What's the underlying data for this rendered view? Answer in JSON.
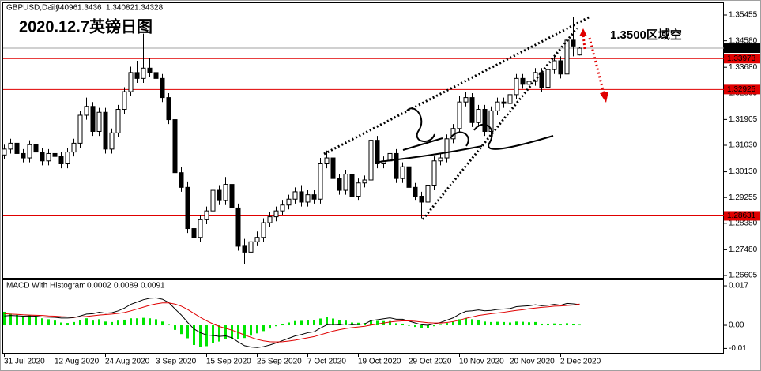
{
  "chart_data": [
    {
      "type": "candlestick",
      "symbol": "GBPUSD,Daily",
      "title": "2020.12.7英镑日图",
      "annotation": "1.3500区域空",
      "categories": [
        "31 Jul 2020",
        null,
        null,
        null,
        null,
        null,
        null,
        null,
        "12 Aug 2020",
        null,
        null,
        null,
        null,
        null,
        null,
        null,
        "24 Aug 2020",
        null,
        null,
        null,
        null,
        null,
        null,
        null,
        "3 Sep 2020",
        null,
        null,
        null,
        null,
        null,
        null,
        null,
        "15 Sep 2020",
        null,
        null,
        null,
        null,
        null,
        null,
        null,
        "25 Sep 2020",
        null,
        null,
        null,
        null,
        null,
        null,
        null,
        "7 Oct 2020",
        null,
        null,
        null,
        null,
        null,
        null,
        null,
        "19 Oct 2020",
        null,
        null,
        null,
        null,
        null,
        null,
        null,
        "29 Oct 2020",
        null,
        null,
        null,
        null,
        null,
        null,
        null,
        "10 Nov 2020",
        null,
        null,
        null,
        null,
        null,
        null,
        null,
        "20 Nov 2020",
        null,
        null,
        null,
        null,
        null,
        null,
        null,
        "2 Dec 2020",
        null,
        null,
        null
      ],
      "open": [
        1.307,
        1.309,
        1.311,
        1.3075,
        1.306,
        1.3105,
        1.308,
        1.305,
        1.3075,
        1.3065,
        1.304,
        1.308,
        1.311,
        1.3205,
        1.3235,
        1.315,
        1.3215,
        1.309,
        1.3145,
        1.3225,
        1.3285,
        1.335,
        1.333,
        1.3365,
        1.335,
        1.333,
        1.3265,
        1.319,
        1.301,
        1.296,
        1.282,
        1.279,
        1.285,
        1.288,
        1.295,
        1.2915,
        1.297,
        1.289,
        1.276,
        1.274,
        1.2775,
        1.279,
        1.284,
        1.286,
        1.288,
        1.29,
        1.292,
        1.2945,
        1.291,
        1.2935,
        1.292,
        1.304,
        1.306,
        1.299,
        1.295,
        1.3005,
        1.293,
        1.2975,
        1.2985,
        1.312,
        1.304,
        1.305,
        1.3075,
        1.299,
        1.303,
        1.296,
        1.293,
        1.291,
        1.2965,
        1.305,
        1.306,
        1.3125,
        1.316,
        1.325,
        1.3265,
        1.318,
        1.3225,
        1.315,
        1.322,
        1.325,
        1.3245,
        1.3275,
        1.333,
        1.331,
        1.332,
        1.335,
        1.33,
        1.336,
        1.339,
        1.3345,
        1.346,
        1.34096
      ],
      "high": [
        1.3105,
        1.3125,
        1.3125,
        1.309,
        1.312,
        1.312,
        1.3095,
        1.309,
        1.309,
        1.308,
        1.3095,
        1.3125,
        1.322,
        1.3265,
        1.325,
        1.323,
        1.323,
        1.316,
        1.324,
        1.33,
        1.337,
        1.339,
        1.3482,
        1.34,
        1.337,
        1.3345,
        1.328,
        1.3205,
        1.303,
        1.298,
        1.284,
        1.2865,
        1.2895,
        1.2985,
        1.2965,
        1.2995,
        1.2985,
        1.2905,
        1.2785,
        1.2795,
        1.281,
        1.2855,
        1.2875,
        1.2895,
        1.2915,
        1.2935,
        1.296,
        1.2965,
        1.295,
        1.295,
        1.306,
        1.3085,
        1.3075,
        1.3005,
        1.302,
        1.302,
        1.299,
        1.3,
        1.314,
        1.3135,
        1.3065,
        1.309,
        1.309,
        1.3045,
        1.3045,
        1.2975,
        1.2945,
        1.298,
        1.3065,
        1.3075,
        1.314,
        1.3175,
        1.327,
        1.3285,
        1.328,
        1.324,
        1.324,
        1.3235,
        1.3265,
        1.3265,
        1.329,
        1.3345,
        1.3345,
        1.3335,
        1.3365,
        1.3365,
        1.3375,
        1.341,
        1.3405,
        1.348,
        1.354,
        1.3436
      ],
      "low": [
        1.3055,
        1.3075,
        1.306,
        1.3045,
        1.3045,
        1.3065,
        1.3035,
        1.3035,
        1.305,
        1.3025,
        1.3025,
        1.3065,
        1.3095,
        1.319,
        1.3135,
        1.3135,
        1.3075,
        1.3075,
        1.313,
        1.321,
        1.327,
        1.3315,
        1.3315,
        1.3335,
        1.3315,
        1.325,
        1.3175,
        1.2995,
        1.2945,
        1.2805,
        1.2775,
        1.2775,
        1.2835,
        1.2865,
        1.29,
        1.29,
        1.2875,
        1.2745,
        1.27,
        1.268,
        1.276,
        1.2775,
        1.2825,
        1.2845,
        1.2865,
        1.2885,
        1.2905,
        1.2895,
        1.2895,
        1.2905,
        1.2905,
        1.3025,
        1.2975,
        1.2935,
        1.2935,
        1.287,
        1.2915,
        1.296,
        1.297,
        1.3025,
        1.3025,
        1.3035,
        1.2975,
        1.2975,
        1.2945,
        1.2915,
        1.2855,
        1.2895,
        1.295,
        1.3035,
        1.3045,
        1.311,
        1.3145,
        1.3235,
        1.3165,
        1.3165,
        1.3135,
        1.3135,
        1.3205,
        1.323,
        1.323,
        1.326,
        1.3295,
        1.3295,
        1.3305,
        1.3285,
        1.3285,
        1.3345,
        1.333,
        1.333,
        1.3405,
        1.34082
      ],
      "close": [
        1.309,
        1.311,
        1.3075,
        1.306,
        1.3105,
        1.308,
        1.305,
        1.3075,
        1.3065,
        1.304,
        1.308,
        1.311,
        1.3205,
        1.3235,
        1.315,
        1.3215,
        1.309,
        1.3145,
        1.3225,
        1.3285,
        1.335,
        1.333,
        1.3365,
        1.335,
        1.333,
        1.3265,
        1.319,
        1.301,
        1.296,
        1.282,
        1.279,
        1.285,
        1.288,
        1.295,
        1.2915,
        1.297,
        1.289,
        1.276,
        1.274,
        1.2775,
        1.279,
        1.284,
        1.286,
        1.288,
        1.29,
        1.292,
        1.2945,
        1.291,
        1.2935,
        1.292,
        1.304,
        1.306,
        1.299,
        1.295,
        1.3005,
        1.293,
        1.2975,
        1.2985,
        1.312,
        1.304,
        1.305,
        1.3075,
        1.299,
        1.303,
        1.296,
        1.293,
        1.291,
        1.2965,
        1.305,
        1.306,
        1.3125,
        1.316,
        1.325,
        1.3265,
        1.318,
        1.3225,
        1.315,
        1.322,
        1.325,
        1.3245,
        1.3275,
        1.333,
        1.331,
        1.332,
        1.335,
        1.33,
        1.336,
        1.339,
        1.3345,
        1.346,
        1.344,
        1.34328
      ],
      "up_color": "#ffffff",
      "down_color": "#000000",
      "outline_color": "#000000",
      "ylim": [
        1.26525,
        1.35884
      ],
      "yticks": [
        1.35455,
        {
          "value": 1.3458,
          "label": "1.34580"
        },
        {
          "value": 1.3368,
          "label": "1.33680"
        },
        1.32805,
        1.31905,
        {
          "value": 1.3103,
          "label": "1.31030"
        },
        {
          "value": 1.3013,
          "label": "1.30130"
        },
        1.29255,
        {
          "value": 1.2838,
          "label": "1.28380"
        },
        {
          "value": 1.2748,
          "label": "1.27480"
        },
        1.26605
      ],
      "levels": [
        1.33973,
        1.32925,
        1.28631
      ],
      "level_color": "#e00000",
      "price_line_color": "#a0a0a0"
    },
    {
      "type": "macd",
      "indicator": "MACD With Histogram",
      "series": [
        {
          "type": "histogram",
          "color": "#00e600",
          "values": [
            0.0058,
            0.005,
            0.0045,
            0.004,
            0.0042,
            0.0038,
            0.003,
            0.0026,
            0.002,
            0.0012,
            0.001,
            0.0014,
            0.0022,
            0.003,
            0.002,
            0.0026,
            0.0016,
            0.0014,
            0.002,
            0.0024,
            0.003,
            0.003,
            0.0032,
            0.003,
            0.0026,
            0.0016,
            0.0002,
            -0.002,
            -0.0038,
            -0.0056,
            -0.0085,
            -0.0095,
            -0.009,
            -0.0078,
            -0.007,
            -0.006,
            -0.0058,
            -0.006,
            -0.0055,
            -0.0045,
            -0.0035,
            -0.0025,
            -0.0014,
            -0.0004,
            0.0005,
            0.0012,
            0.0018,
            0.0019,
            0.0022,
            0.0021,
            0.0029,
            0.0035,
            0.0029,
            0.0021,
            0.002,
            0.0012,
            0.0011,
            0.001,
            0.0019,
            0.0019,
            0.0018,
            0.0018,
            0.0009,
            0.0007,
            -0.0001,
            -0.0007,
            -0.0012,
            -0.0011,
            -0.0004,
            0.0002,
            0.001,
            0.0016,
            0.0026,
            0.003,
            0.0026,
            0.0024,
            0.0016,
            0.0014,
            0.0015,
            0.0014,
            0.0012,
            0.0016,
            0.0015,
            0.0013,
            0.0014,
            0.0007,
            0.0007,
            0.0008,
            0.0003,
            0.0009,
            0.0005,
            0.0002
          ]
        },
        {
          "type": "line",
          "color": "#000000",
          "values": [
            0.004,
            0.0042,
            0.0041,
            0.0039,
            0.004,
            0.0039,
            0.0036,
            0.0035,
            0.0034,
            0.0031,
            0.0031,
            0.0033,
            0.004,
            0.0048,
            0.005,
            0.0056,
            0.0052,
            0.0054,
            0.0062,
            0.0074,
            0.009,
            0.01,
            0.011,
            0.0116,
            0.0118,
            0.0112,
            0.0098,
            0.007,
            0.0044,
            0.0012,
            -0.0016,
            -0.0032,
            -0.0042,
            -0.0044,
            -0.0048,
            -0.0046,
            -0.0054,
            -0.0072,
            -0.0088,
            -0.0094,
            -0.0096,
            -0.0092,
            -0.0085,
            -0.0076,
            -0.0066,
            -0.0056,
            -0.0046,
            -0.004,
            -0.0032,
            -0.0028,
            -0.0012,
            0.0002,
            0.0004,
            0.0002,
            0.0006,
            0.0002,
            0.0004,
            0.0006,
            0.002,
            0.0024,
            0.0028,
            0.0032,
            0.0026,
            0.0026,
            0.0018,
            0.001,
            0.0002,
            0.0,
            0.0006,
            0.0012,
            0.0022,
            0.0032,
            0.0048,
            0.006,
            0.0062,
            0.0066,
            0.0062,
            0.0064,
            0.0068,
            0.007,
            0.0072,
            0.008,
            0.0082,
            0.0084,
            0.0088,
            0.0084,
            0.0086,
            0.009,
            0.0086,
            0.0094,
            0.0092,
            0.0089
          ]
        },
        {
          "type": "line",
          "color": "#e00000",
          "values": [
            0.005,
            0.0048,
            0.0047,
            0.0045,
            0.0044,
            0.0043,
            0.0042,
            0.004,
            0.0039,
            0.0037,
            0.0036,
            0.0035,
            0.0036,
            0.0038,
            0.0041,
            0.0044,
            0.0046,
            0.0048,
            0.0051,
            0.0055,
            0.0062,
            0.007,
            0.0078,
            0.0086,
            0.0092,
            0.0096,
            0.0096,
            0.0091,
            0.0082,
            0.0068,
            0.0051,
            0.0034,
            0.0019,
            0.0006,
            -0.0005,
            -0.0013,
            -0.0021,
            -0.0031,
            -0.0042,
            -0.0052,
            -0.0061,
            -0.0067,
            -0.0071,
            -0.0072,
            -0.0071,
            -0.0068,
            -0.0064,
            -0.0059,
            -0.0054,
            -0.0049,
            -0.0041,
            -0.0033,
            -0.0025,
            -0.0019,
            -0.0014,
            -0.001,
            -0.0007,
            -0.0004,
            0.0001,
            0.0005,
            0.001,
            0.0014,
            0.0017,
            0.0019,
            0.0019,
            0.0017,
            0.0014,
            0.0011,
            0.001,
            0.001,
            0.0012,
            0.0016,
            0.0022,
            0.003,
            0.0036,
            0.0042,
            0.0046,
            0.005,
            0.0053,
            0.0056,
            0.006,
            0.0064,
            0.0067,
            0.0071,
            0.0074,
            0.0077,
            0.0079,
            0.0082,
            0.0083,
            0.0085,
            0.0087,
            0.0091
          ]
        }
      ],
      "ylim": [
        -0.0119,
        0.0194
      ],
      "yticks": [
        0.017,
        {
          "value": 0,
          "label": "0.00"
        },
        -0.01
      ]
    }
  ]
}
